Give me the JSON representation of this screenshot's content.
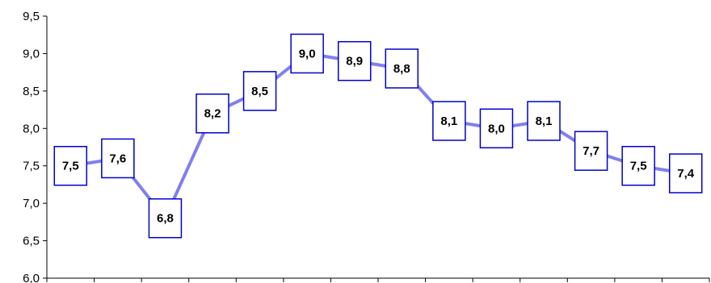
{
  "chart_data": {
    "type": "line",
    "title": "",
    "xlabel": "",
    "ylabel": "",
    "x": [
      1,
      2,
      3,
      4,
      5,
      6,
      7,
      8,
      9,
      10,
      11,
      12,
      13,
      14
    ],
    "series": [
      {
        "values": [
          7.5,
          7.6,
          6.8,
          8.2,
          8.5,
          9.0,
          8.9,
          8.8,
          8.1,
          8.0,
          8.1,
          7.7,
          7.5,
          7.4
        ],
        "labels": [
          "7,5",
          "7,6",
          "6,8",
          "8,2",
          "8,5",
          "9,0",
          "8,9",
          "8,8",
          "8,1",
          "8,0",
          "8,1",
          "7,7",
          "7,5",
          "7,4"
        ],
        "color": "#8080f0"
      }
    ],
    "ylim": [
      6.0,
      9.5
    ],
    "yticks": [
      6.0,
      6.5,
      7.0,
      7.5,
      8.0,
      8.5,
      9.0,
      9.5
    ],
    "ytick_labels": [
      "6,0",
      "6,5",
      "7,0",
      "7,5",
      "8,0",
      "8,5",
      "9,0",
      "9,5"
    ],
    "grid": false,
    "legend": "none",
    "label_box_color": "#0000cc"
  }
}
